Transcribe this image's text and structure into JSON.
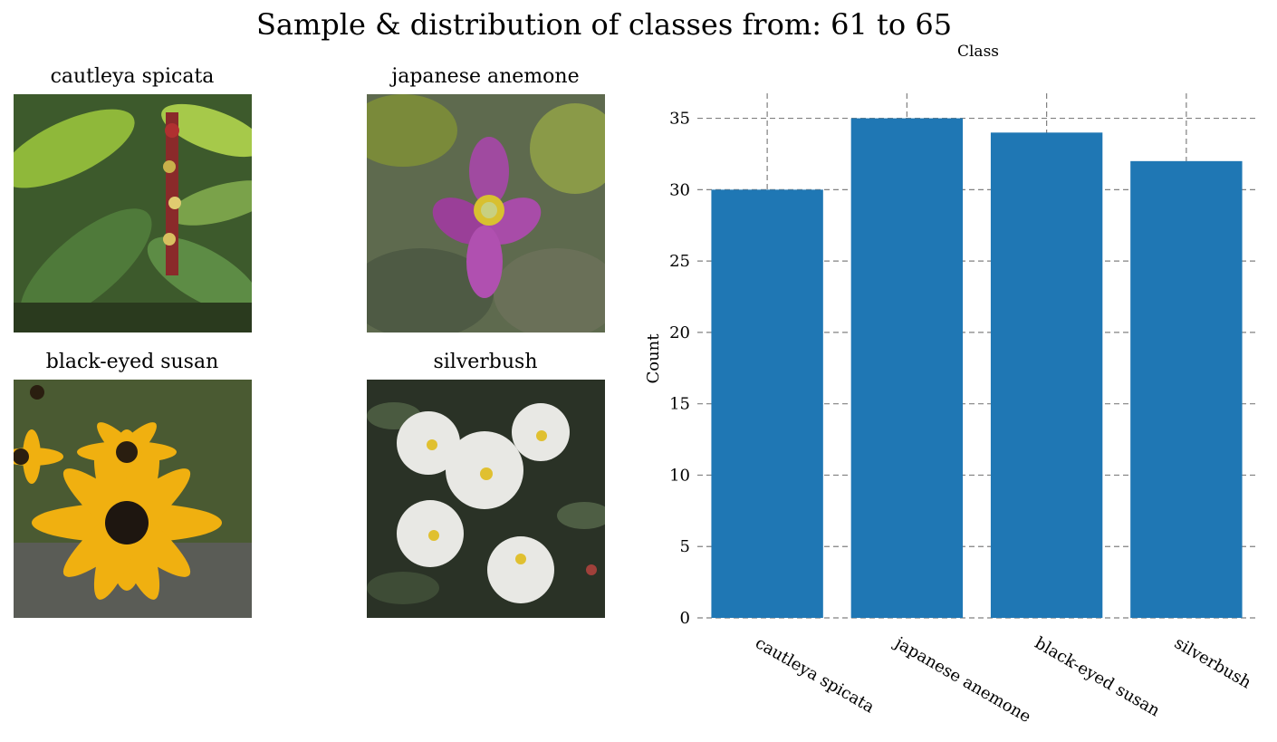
{
  "figure": {
    "title": "Sample & distribution of classes from: 61 to 65"
  },
  "samples": [
    {
      "label": "cautleya spicata"
    },
    {
      "label": "japanese anemone"
    },
    {
      "label": "black-eyed susan"
    },
    {
      "label": "silverbush"
    }
  ],
  "chart_data": {
    "type": "bar",
    "title": "Class",
    "xlabel": "",
    "ylabel": "Count",
    "categories": [
      "cautleya spicata",
      "japanese anemone",
      "black-eyed susan",
      "silverbush"
    ],
    "values": [
      30,
      35,
      34,
      32
    ],
    "ylim": [
      0,
      36.75
    ],
    "yticks": [
      0,
      5,
      10,
      15,
      20,
      25,
      30,
      35
    ],
    "grid": true,
    "bar_color": "#1f77b4",
    "grid_color": "#808080"
  }
}
